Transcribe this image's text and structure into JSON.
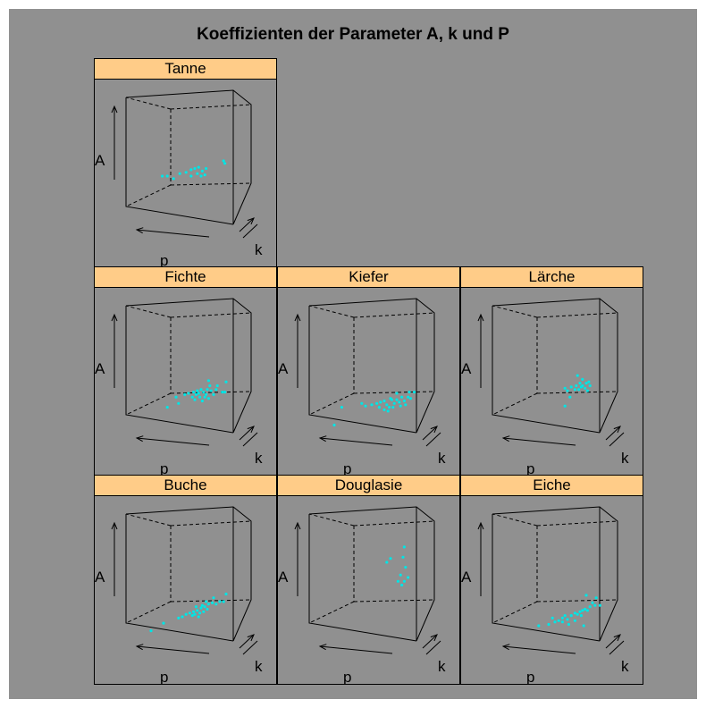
{
  "chart_data": {
    "type": "scatter",
    "subtype": "3d-cloud-lattice",
    "title": "Koeffizienten der Parameter A, k und P",
    "axis_labels": {
      "vertical": "A",
      "depth": "k",
      "horizontal": "p"
    },
    "point_color": "#00e5e5",
    "strip_color": "#ffcc88",
    "background_color": "#909090",
    "panels": [
      {
        "name": "Tanne",
        "points": [
          [
            0.29,
            0.62
          ],
          [
            0.33,
            0.62
          ],
          [
            0.38,
            0.64
          ],
          [
            0.43,
            0.6
          ],
          [
            0.48,
            0.59
          ],
          [
            0.52,
            0.57
          ],
          [
            0.55,
            0.56
          ],
          [
            0.58,
            0.55
          ],
          [
            0.61,
            0.58
          ],
          [
            0.64,
            0.56
          ],
          [
            0.57,
            0.6
          ],
          [
            0.52,
            0.62
          ],
          [
            0.6,
            0.62
          ],
          [
            0.63,
            0.61
          ],
          [
            0.78,
            0.5
          ],
          [
            0.79,
            0.52
          ]
        ]
      },
      {
        "name": "Fichte",
        "points": [
          [
            0.33,
            0.8
          ],
          [
            0.42,
            0.77
          ],
          [
            0.4,
            0.72
          ],
          [
            0.47,
            0.7
          ],
          [
            0.5,
            0.69
          ],
          [
            0.54,
            0.68
          ],
          [
            0.57,
            0.67
          ],
          [
            0.6,
            0.66
          ],
          [
            0.62,
            0.68
          ],
          [
            0.64,
            0.7
          ],
          [
            0.65,
            0.66
          ],
          [
            0.56,
            0.7
          ],
          [
            0.59,
            0.72
          ],
          [
            0.63,
            0.72
          ],
          [
            0.68,
            0.67
          ],
          [
            0.7,
            0.7
          ],
          [
            0.72,
            0.66
          ],
          [
            0.77,
            0.68
          ],
          [
            0.79,
            0.68
          ],
          [
            0.8,
            0.6
          ],
          [
            0.66,
            0.59
          ],
          [
            0.67,
            0.63
          ],
          [
            0.73,
            0.63
          ],
          [
            0.55,
            0.74
          ],
          [
            0.61,
            0.75
          ],
          [
            0.58,
            0.69
          ],
          [
            0.53,
            0.72
          ],
          [
            0.66,
            0.73
          ]
        ]
      },
      {
        "name": "Kiefer",
        "points": [
          [
            0.2,
            0.94
          ],
          [
            0.26,
            0.8
          ],
          [
            0.42,
            0.77
          ],
          [
            0.45,
            0.79
          ],
          [
            0.5,
            0.78
          ],
          [
            0.54,
            0.77
          ],
          [
            0.57,
            0.76
          ],
          [
            0.6,
            0.75
          ],
          [
            0.62,
            0.78
          ],
          [
            0.64,
            0.8
          ],
          [
            0.66,
            0.74
          ],
          [
            0.68,
            0.77
          ],
          [
            0.7,
            0.74
          ],
          [
            0.72,
            0.76
          ],
          [
            0.74,
            0.72
          ],
          [
            0.76,
            0.75
          ],
          [
            0.79,
            0.72
          ],
          [
            0.81,
            0.73
          ],
          [
            0.8,
            0.68
          ],
          [
            0.63,
            0.83
          ],
          [
            0.56,
            0.8
          ],
          [
            0.6,
            0.82
          ],
          [
            0.67,
            0.8
          ],
          [
            0.73,
            0.79
          ],
          [
            0.77,
            0.78
          ],
          [
            0.84,
            0.68
          ],
          [
            0.65,
            0.73
          ],
          [
            0.7,
            0.69
          ]
        ]
      },
      {
        "name": "Lärche",
        "points": [
          [
            0.58,
            0.79
          ],
          [
            0.62,
            0.72
          ],
          [
            0.6,
            0.67
          ],
          [
            0.63,
            0.64
          ],
          [
            0.66,
            0.66
          ],
          [
            0.67,
            0.63
          ],
          [
            0.7,
            0.61
          ],
          [
            0.72,
            0.63
          ],
          [
            0.74,
            0.65
          ],
          [
            0.75,
            0.61
          ],
          [
            0.77,
            0.6
          ],
          [
            0.78,
            0.63
          ],
          [
            0.72,
            0.58
          ],
          [
            0.69,
            0.66
          ],
          [
            0.68,
            0.55
          ],
          [
            0.58,
            0.65
          ],
          [
            0.71,
            0.64
          ],
          [
            0.76,
            0.67
          ]
        ]
      },
      {
        "name": "Buche",
        "points": [
          [
            0.2,
            0.92
          ],
          [
            0.3,
            0.86
          ],
          [
            0.42,
            0.82
          ],
          [
            0.45,
            0.81
          ],
          [
            0.48,
            0.79
          ],
          [
            0.51,
            0.78
          ],
          [
            0.54,
            0.77
          ],
          [
            0.57,
            0.76
          ],
          [
            0.6,
            0.74
          ],
          [
            0.63,
            0.73
          ],
          [
            0.66,
            0.71
          ],
          [
            0.69,
            0.7
          ],
          [
            0.72,
            0.71
          ],
          [
            0.75,
            0.69
          ],
          [
            0.78,
            0.69
          ],
          [
            0.55,
            0.79
          ],
          [
            0.59,
            0.78
          ],
          [
            0.62,
            0.77
          ],
          [
            0.65,
            0.75
          ],
          [
            0.61,
            0.72
          ],
          [
            0.56,
            0.73
          ],
          [
            0.7,
            0.66
          ],
          [
            0.8,
            0.63
          ],
          [
            0.58,
            0.81
          ],
          [
            0.64,
            0.69
          ],
          [
            0.53,
            0.8
          ]
        ]
      },
      {
        "name": "Douglasie",
        "points": [
          [
            0.62,
            0.38
          ],
          [
            0.65,
            0.35
          ],
          [
            0.75,
            0.34
          ],
          [
            0.77,
            0.42
          ],
          [
            0.73,
            0.48
          ],
          [
            0.79,
            0.5
          ],
          [
            0.71,
            0.53
          ],
          [
            0.74,
            0.56
          ],
          [
            0.76,
            0.53
          ],
          [
            0.76,
            0.26
          ]
        ]
      },
      {
        "name": "Eiche",
        "points": [
          [
            0.37,
            0.88
          ],
          [
            0.45,
            0.87
          ],
          [
            0.5,
            0.85
          ],
          [
            0.53,
            0.84
          ],
          [
            0.56,
            0.82
          ],
          [
            0.58,
            0.8
          ],
          [
            0.6,
            0.83
          ],
          [
            0.63,
            0.8
          ],
          [
            0.66,
            0.78
          ],
          [
            0.68,
            0.79
          ],
          [
            0.7,
            0.77
          ],
          [
            0.72,
            0.76
          ],
          [
            0.74,
            0.75
          ],
          [
            0.76,
            0.76
          ],
          [
            0.78,
            0.73
          ],
          [
            0.8,
            0.7
          ],
          [
            0.82,
            0.72
          ],
          [
            0.83,
            0.66
          ],
          [
            0.75,
            0.64
          ],
          [
            0.71,
            0.8
          ],
          [
            0.66,
            0.84
          ],
          [
            0.56,
            0.85
          ],
          [
            0.61,
            0.87
          ],
          [
            0.73,
            0.88
          ],
          [
            0.48,
            0.82
          ],
          [
            0.86,
            0.72
          ]
        ]
      }
    ]
  }
}
